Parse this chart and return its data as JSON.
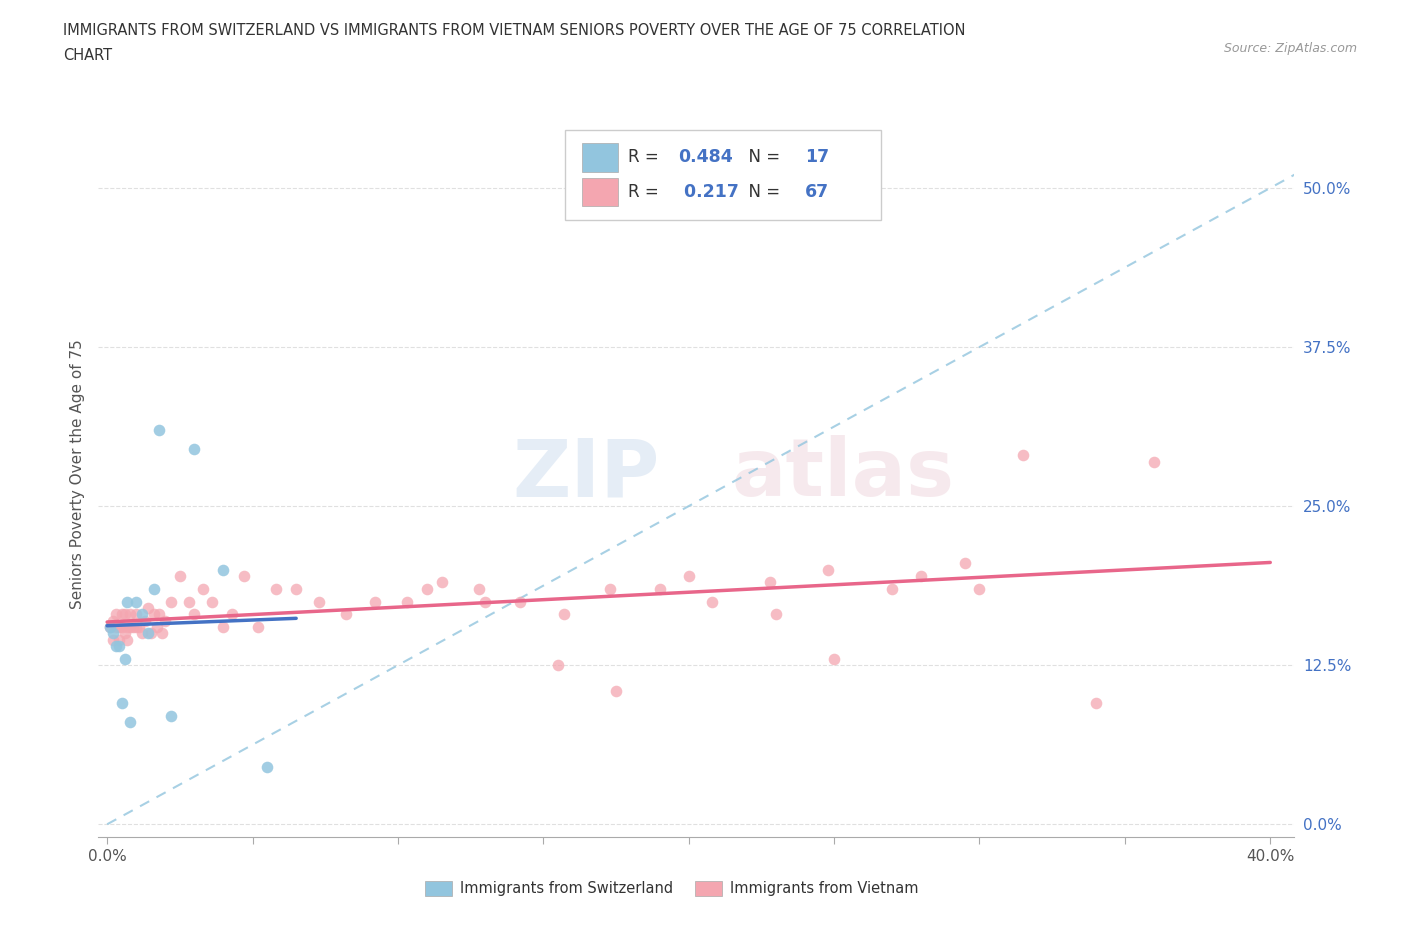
{
  "title_line1": "IMMIGRANTS FROM SWITZERLAND VS IMMIGRANTS FROM VIETNAM SENIORS POVERTY OVER THE AGE OF 75 CORRELATION",
  "title_line2": "CHART",
  "source": "Source: ZipAtlas.com",
  "ylabel": "Seniors Poverty Over the Age of 75",
  "switzerland_color": "#92c5de",
  "vietnam_color": "#f4a6b0",
  "trend_switzerland_color": "#4472c4",
  "trend_vietnam_color": "#e8668a",
  "dashed_line_color": "#92c5de",
  "R_switzerland": 0.484,
  "N_switzerland": 17,
  "R_vietnam": 0.217,
  "N_vietnam": 67,
  "watermark_zip": "ZIP",
  "watermark_atlas": "atlas",
  "switzerland_x": [
    0.001,
    0.002,
    0.003,
    0.004,
    0.005,
    0.006,
    0.007,
    0.008,
    0.01,
    0.012,
    0.014,
    0.016,
    0.018,
    0.022,
    0.03,
    0.04,
    0.055
  ],
  "switzerland_y": [
    0.155,
    0.15,
    0.14,
    0.14,
    0.095,
    0.13,
    0.175,
    0.08,
    0.175,
    0.165,
    0.15,
    0.185,
    0.31,
    0.085,
    0.295,
    0.2,
    0.045
  ],
  "vietnam_x": [
    0.001,
    0.002,
    0.002,
    0.003,
    0.003,
    0.004,
    0.004,
    0.005,
    0.005,
    0.006,
    0.006,
    0.007,
    0.007,
    0.008,
    0.008,
    0.009,
    0.01,
    0.01,
    0.011,
    0.012,
    0.013,
    0.014,
    0.015,
    0.016,
    0.017,
    0.018,
    0.019,
    0.02,
    0.022,
    0.025,
    0.028,
    0.03,
    0.033,
    0.036,
    0.04,
    0.043,
    0.047,
    0.052,
    0.058,
    0.065,
    0.073,
    0.082,
    0.092,
    0.103,
    0.115,
    0.128,
    0.142,
    0.157,
    0.173,
    0.19,
    0.208,
    0.228,
    0.248,
    0.27,
    0.175,
    0.2,
    0.25,
    0.295,
    0.315,
    0.3,
    0.28,
    0.34,
    0.36,
    0.11,
    0.13,
    0.155,
    0.23
  ],
  "vietnam_y": [
    0.155,
    0.16,
    0.145,
    0.155,
    0.165,
    0.145,
    0.155,
    0.165,
    0.155,
    0.165,
    0.15,
    0.155,
    0.145,
    0.155,
    0.165,
    0.155,
    0.165,
    0.155,
    0.155,
    0.15,
    0.16,
    0.17,
    0.15,
    0.165,
    0.155,
    0.165,
    0.15,
    0.16,
    0.175,
    0.195,
    0.175,
    0.165,
    0.185,
    0.175,
    0.155,
    0.165,
    0.195,
    0.155,
    0.185,
    0.185,
    0.175,
    0.165,
    0.175,
    0.175,
    0.19,
    0.185,
    0.175,
    0.165,
    0.185,
    0.185,
    0.175,
    0.19,
    0.2,
    0.185,
    0.105,
    0.195,
    0.13,
    0.205,
    0.29,
    0.185,
    0.195,
    0.095,
    0.285,
    0.185,
    0.175,
    0.125,
    0.165
  ],
  "x_tick_positions": [
    0.0,
    0.05,
    0.1,
    0.15,
    0.2,
    0.25,
    0.3,
    0.35,
    0.4
  ],
  "y_ticks_right": [
    0.0,
    0.125,
    0.25,
    0.375,
    0.5
  ],
  "y_tick_labels_right": [
    "0.0%",
    "12.5%",
    "25.0%",
    "37.5%",
    "50.0%"
  ],
  "xlim": [
    -0.003,
    0.408
  ],
  "ylim": [
    -0.01,
    0.56
  ],
  "grid_color": "#e0e0e0",
  "grid_style": "--",
  "legend_label_sw": "Immigrants from Switzerland",
  "legend_label_vn": "Immigrants from Vietnam"
}
